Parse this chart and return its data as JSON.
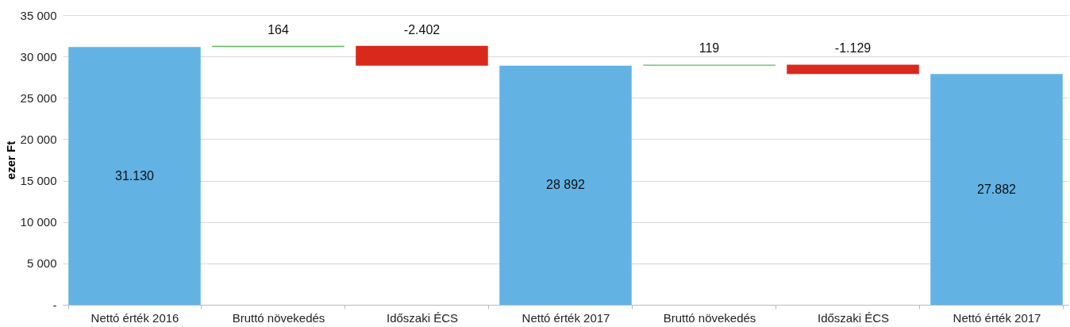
{
  "chart_data": {
    "type": "bar",
    "ylabel": "ezer Ft",
    "categories": [
      "Nettó érték 2016",
      "Bruttó növekedés",
      "Időszaki ÉCS",
      "Nettó érték 2017",
      "Bruttó növekedés",
      "Időszaki ÉCS",
      "Nettó érték 2017"
    ],
    "values": [
      31130,
      164,
      -2402,
      28892,
      119,
      -1129,
      27882
    ],
    "base": [
      0,
      31130,
      31294,
      0,
      28892,
      29011,
      0
    ],
    "colors": [
      "#62b3e4",
      "#5cb85c",
      "#d9291c",
      "#62b3e4",
      "#5cb85c",
      "#d9291c",
      "#62b3e4"
    ],
    "value_labels": [
      "31.130",
      "164",
      "-2.402",
      "28 892",
      "119",
      "-1.129",
      "27.882"
    ],
    "ylim": [
      0,
      35000
    ],
    "yticks": [
      {
        "value": 0,
        "label": "-"
      },
      {
        "value": 5000,
        "label": "5 000"
      },
      {
        "value": 10000,
        "label": "10 000"
      },
      {
        "value": 15000,
        "label": "15 000"
      },
      {
        "value": 20000,
        "label": "20 000"
      },
      {
        "value": 25000,
        "label": "25 000"
      },
      {
        "value": 30000,
        "label": "30 000"
      },
      {
        "value": 35000,
        "label": "35 000"
      }
    ],
    "grid": true
  }
}
